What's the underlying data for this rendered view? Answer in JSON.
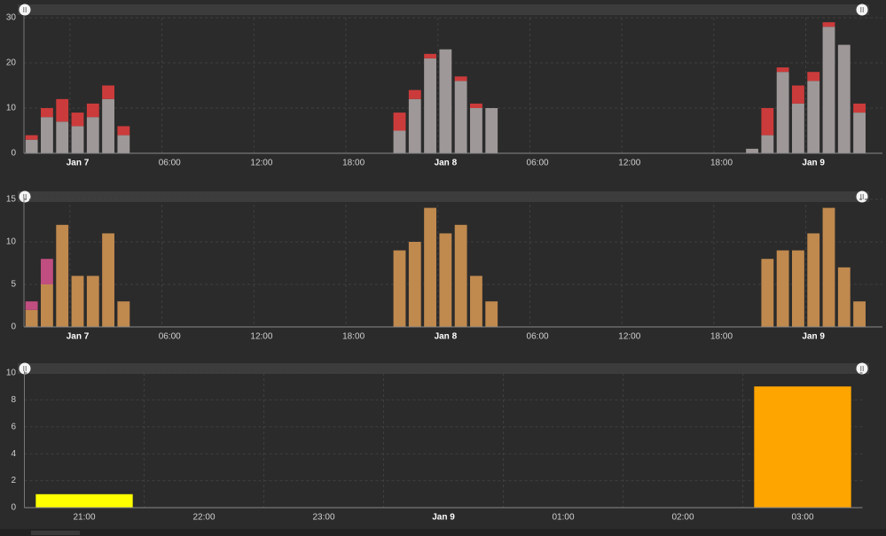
{
  "chart_data": [
    {
      "type": "bar",
      "stacked": true,
      "categories": [
        null,
        null,
        null,
        "Jan 7",
        null,
        null,
        null,
        null,
        null,
        "06:00",
        null,
        null,
        null,
        null,
        null,
        "12:00",
        null,
        null,
        null,
        null,
        null,
        "18:00",
        null,
        null,
        null,
        null,
        null,
        "Jan 8",
        null,
        null,
        null,
        null,
        null,
        "06:00",
        null,
        null,
        null,
        null,
        null,
        "12:00",
        null,
        null,
        null,
        null,
        null,
        "18:00",
        null,
        null,
        null,
        null,
        null,
        "Jan 9",
        null,
        null,
        null,
        null
      ],
      "series": [
        {
          "color": "#9e9898",
          "values": [
            3,
            8,
            7,
            6,
            8,
            12,
            4,
            null,
            null,
            null,
            null,
            null,
            null,
            null,
            null,
            null,
            null,
            null,
            null,
            null,
            null,
            null,
            null,
            null,
            5,
            12,
            21,
            23,
            16,
            10,
            10,
            null,
            null,
            null,
            null,
            null,
            null,
            null,
            null,
            null,
            null,
            null,
            null,
            null,
            null,
            null,
            null,
            1,
            4,
            18,
            11,
            16,
            28,
            24,
            9,
            null
          ]
        },
        {
          "color": "#cc3b3b",
          "values": [
            1,
            2,
            5,
            3,
            3,
            3,
            2,
            null,
            null,
            null,
            null,
            null,
            null,
            null,
            null,
            null,
            null,
            null,
            null,
            null,
            null,
            null,
            null,
            null,
            4,
            2,
            1,
            null,
            1,
            1,
            null,
            null,
            null,
            null,
            null,
            null,
            null,
            null,
            null,
            null,
            null,
            null,
            null,
            null,
            null,
            null,
            null,
            null,
            6,
            1,
            4,
            2,
            1,
            null,
            2,
            null
          ]
        }
      ],
      "ylim": [
        0,
        30
      ],
      "yticks": [
        0,
        10,
        20,
        30
      ],
      "grid": true
    },
    {
      "type": "bar",
      "stacked": true,
      "categories": [
        null,
        null,
        null,
        "Jan 7",
        null,
        null,
        null,
        null,
        null,
        "06:00",
        null,
        null,
        null,
        null,
        null,
        "12:00",
        null,
        null,
        null,
        null,
        null,
        "18:00",
        null,
        null,
        null,
        null,
        null,
        "Jan 8",
        null,
        null,
        null,
        null,
        null,
        "06:00",
        null,
        null,
        null,
        null,
        null,
        "12:00",
        null,
        null,
        null,
        null,
        null,
        "18:00",
        null,
        null,
        null,
        null,
        null,
        "Jan 9",
        null,
        null,
        null,
        null
      ],
      "series": [
        {
          "color": "#c0894e",
          "values": [
            2,
            5,
            12,
            6,
            6,
            11,
            3,
            null,
            null,
            null,
            null,
            null,
            null,
            null,
            null,
            null,
            null,
            null,
            null,
            null,
            null,
            null,
            null,
            null,
            9,
            10,
            14,
            11,
            12,
            6,
            3,
            null,
            null,
            null,
            null,
            null,
            null,
            null,
            null,
            null,
            null,
            null,
            null,
            null,
            null,
            null,
            null,
            null,
            8,
            9,
            9,
            11,
            14,
            7,
            3,
            null
          ]
        },
        {
          "color": "#c04e80",
          "values": [
            1,
            3,
            null,
            null,
            null,
            null,
            null,
            null,
            null,
            null,
            null,
            null,
            null,
            null,
            null,
            null,
            null,
            null,
            null,
            null,
            null,
            null,
            null,
            null,
            null,
            null,
            null,
            null,
            null,
            null,
            null,
            null,
            null,
            null,
            null,
            null,
            null,
            null,
            null,
            null,
            null,
            null,
            null,
            null,
            null,
            null,
            null,
            null,
            null,
            null,
            null,
            null,
            null,
            null,
            null,
            null
          ]
        }
      ],
      "ylim": [
        0,
        15
      ],
      "yticks": [
        0,
        5,
        10,
        15
      ],
      "grid": true
    },
    {
      "type": "bar",
      "stacked": true,
      "categories": [
        "21:00",
        "22:00",
        "23:00",
        "Jan 9",
        "01:00",
        "02:00",
        "03:00"
      ],
      "series": [
        {
          "color": "#ffff00",
          "values": [
            1,
            null,
            null,
            null,
            null,
            null,
            null
          ]
        },
        {
          "color": "#ffa500",
          "values": [
            null,
            null,
            null,
            null,
            null,
            null,
            9
          ]
        }
      ],
      "ylim": [
        0,
        10
      ],
      "yticks": [
        0,
        2,
        4,
        6,
        8,
        10
      ],
      "grid": true
    }
  ]
}
